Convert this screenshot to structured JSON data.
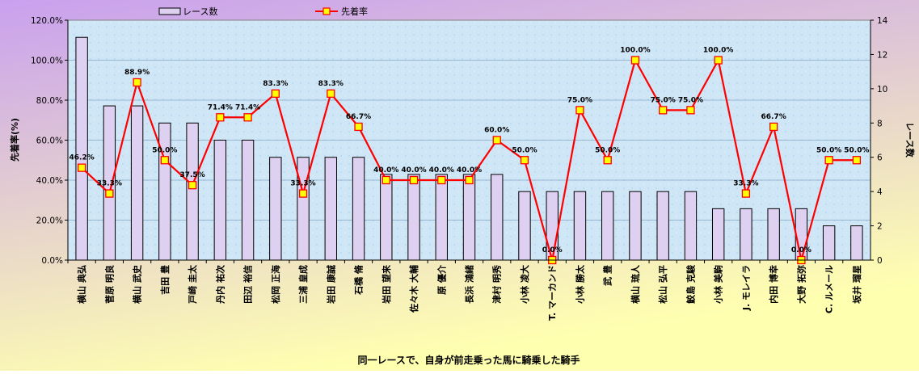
{
  "chart_data": {
    "type": "bar+line",
    "xlabel": "同一レースで、自身が前走乗った馬に騎乗した騎手",
    "ylabel_left": "先着率(%)",
    "ylabel_right": "レース数",
    "ylim_left": [
      0,
      120
    ],
    "ylim_right": [
      0,
      14
    ],
    "y_left_ticks": [
      "0.0%",
      "20.0%",
      "40.0%",
      "60.0%",
      "80.0%",
      "100.0%",
      "120.0%"
    ],
    "y_right_ticks": [
      "0",
      "2",
      "4",
      "6",
      "8",
      "10",
      "12",
      "14"
    ],
    "legend_position": "top",
    "colors": {
      "bar_fill": "#ddd0f0",
      "bar_stroke": "#000000",
      "line": "#ff0000",
      "marker_fill": "#ffff00",
      "marker_stroke": "#ff0000",
      "background_top": "#c9a0ee",
      "background_bottom": "#ffffb0",
      "plot_area": "#cfe6f7"
    },
    "categories": [
      "横山 典弘",
      "菅原 明良",
      "横山 武史",
      "吉田 豊",
      "戸崎 圭太",
      "丹内 祐次",
      "田辺 裕信",
      "松岡 正海",
      "三浦 皇成",
      "岩田 康誠",
      "石橋 脩",
      "岩田 望来",
      "佐々木 大輔",
      "原 優介",
      "長浜 鴻緒",
      "津村 明秀",
      "小林 凌大",
      "T. マーカンド",
      "小林 勝太",
      "武 豊",
      "横山 琉人",
      "松山 弘平",
      "鮫島 克駿",
      "小林 美駒",
      "J. モレイラ",
      "内田 博幸",
      "大野 拓弥",
      "C. ルメール",
      "坂井 瑠星"
    ],
    "series": [
      {
        "name": "レース数",
        "type": "bar",
        "axis": "right",
        "values": [
          13,
          9,
          9,
          8,
          8,
          7,
          7,
          6,
          6,
          6,
          6,
          5,
          5,
          5,
          5,
          5,
          4,
          4,
          4,
          4,
          4,
          4,
          4,
          3,
          3,
          3,
          3,
          2,
          2
        ]
      },
      {
        "name": "先着率",
        "type": "line",
        "axis": "left",
        "values": [
          46.2,
          33.3,
          88.9,
          50.0,
          37.5,
          71.4,
          71.4,
          83.3,
          33.3,
          83.3,
          66.7,
          40.0,
          40.0,
          40.0,
          40.0,
          60.0,
          50.0,
          0.0,
          75.0,
          50.0,
          100.0,
          75.0,
          75.0,
          100.0,
          33.3,
          66.7,
          0.0,
          50.0,
          50.0
        ],
        "labels": [
          "46.2%",
          "33.3%",
          "88.9%",
          "50.0%",
          "37.5%",
          "71.4%",
          "71.4%",
          "83.3%",
          "33.3%",
          "83.3%",
          "66.7%",
          "40.0%",
          "40.0%",
          "40.0%",
          "40.0%",
          "60.0%",
          "50.0%",
          "0.0%",
          "75.0%",
          "50.0%",
          "100.0%",
          "75.0%",
          "75.0%",
          "100.0%",
          "33.3%",
          "66.7%",
          "0.0%",
          "50.0%",
          "50.0%"
        ]
      }
    ]
  }
}
